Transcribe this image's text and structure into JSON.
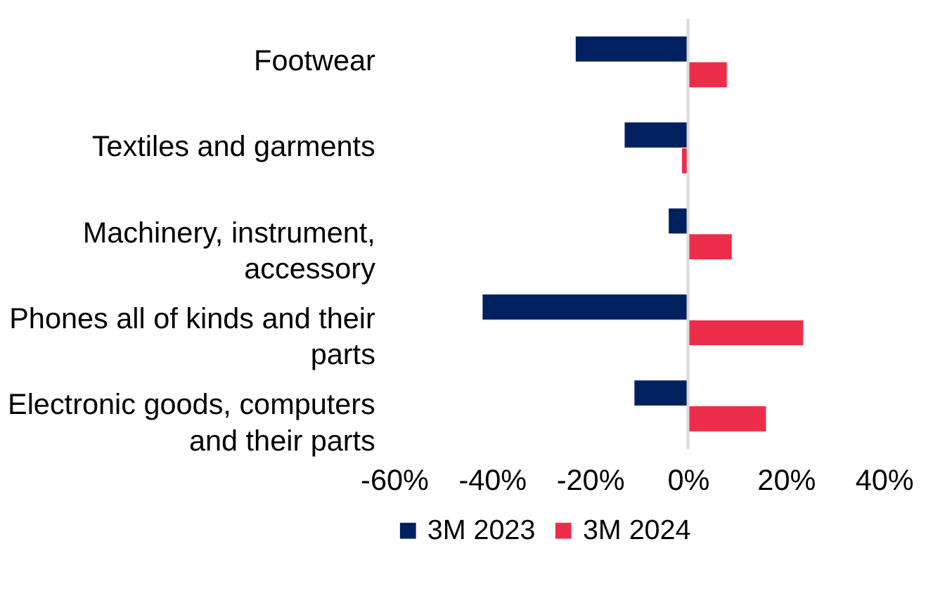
{
  "chart_data": {
    "type": "bar",
    "orientation": "horizontal",
    "categories": [
      "Footwear",
      "Textiles and garments",
      "Machinery, instrument, accessory",
      "Phones all of kinds and their parts",
      "Electronic goods, computers and their parts"
    ],
    "series": [
      {
        "name": "3M 2023",
        "color": "#002060",
        "values": [
          -23,
          -13,
          -4,
          -42,
          -11
        ]
      },
      {
        "name": "3M 2024",
        "color": "#ec2d4a",
        "values": [
          8,
          -1.3,
          9,
          23.6,
          16
        ]
      }
    ],
    "xlim": [
      -60,
      40
    ],
    "xticks": [
      {
        "value": -60,
        "label": "-60%"
      },
      {
        "value": -40,
        "label": "-40%"
      },
      {
        "value": -20,
        "label": "-20%"
      },
      {
        "value": 0,
        "label": "0%"
      },
      {
        "value": 20,
        "label": "20%"
      },
      {
        "value": 40,
        "label": "40%"
      }
    ],
    "ref_lines": [
      {
        "axis": "x",
        "value": 0,
        "color": "#d9d9d9"
      }
    ],
    "grid": false,
    "legend": "bottom"
  }
}
